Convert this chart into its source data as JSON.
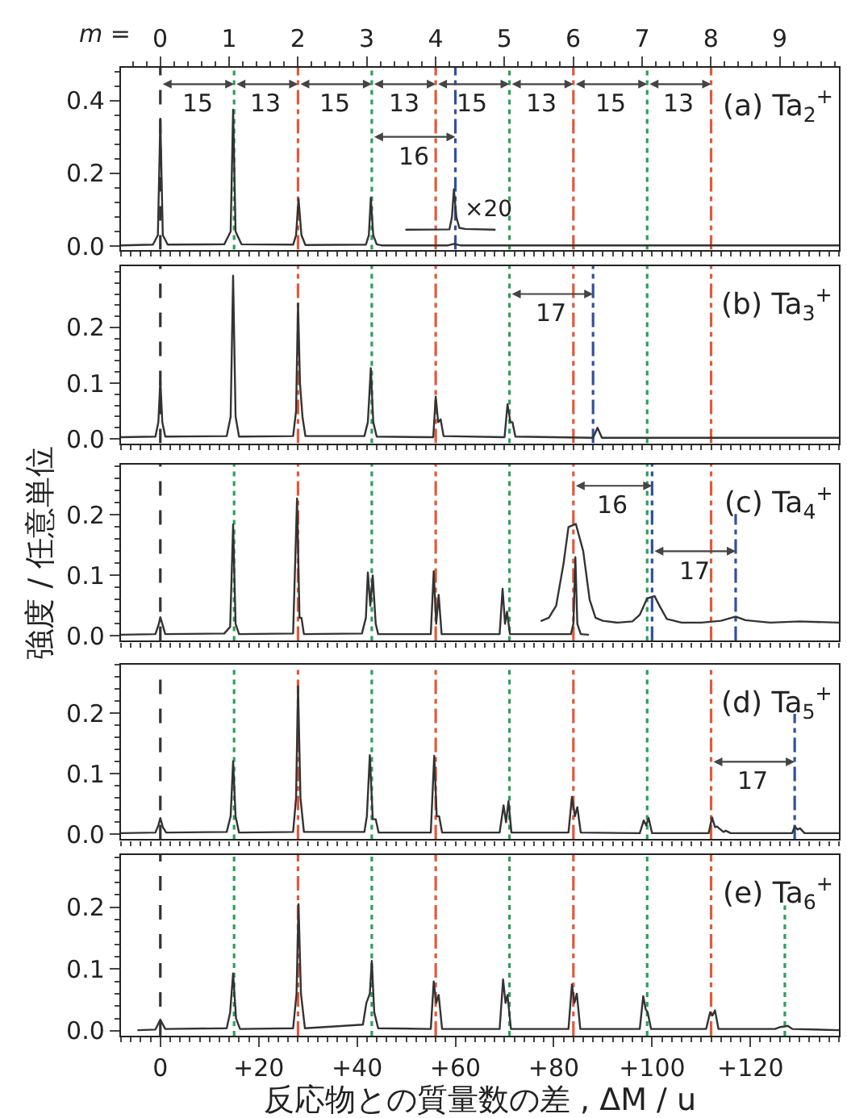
{
  "chart_data": [
    {
      "type": "line",
      "title": "(a) Ta$_{2}$$^{+}$",
      "xlim": [
        -8,
        138
      ],
      "ylim": [
        -0.01,
        0.49
      ],
      "xticks": [
        {
          "value": 0,
          "label": null
        },
        {
          "value": 20,
          "label": null
        },
        {
          "value": 40,
          "label": null
        },
        {
          "value": 60,
          "label": null
        },
        {
          "value": 80,
          "label": null
        },
        {
          "value": 100,
          "label": null
        },
        {
          "value": 120,
          "label": null
        }
      ],
      "yticks": [
        {
          "value": 0,
          "label": "0.0"
        },
        {
          "value": 0.2,
          "label": "0.2"
        },
        {
          "value": 0.4,
          "label": "0.4"
        }
      ],
      "x2label": "m =",
      "x2lim": [
        -0.57,
        9.86
      ],
      "x2ticks": [
        0,
        1,
        2,
        3,
        4,
        5,
        6,
        7,
        8,
        9
      ],
      "tick_labels": "y",
      "marker": "none",
      "series": [
        {
          "color": "#333333",
          "x": [
            -8,
            -1.5,
            -0.5,
            0,
            0.5,
            1.5,
            13,
            14.3,
            14.8,
            15.3,
            16.5,
            27,
            27.6,
            28.1,
            28.7,
            29.5,
            41.8,
            42.4,
            42.8,
            43.3,
            44,
            45,
            58.5,
            59.7,
            61,
            138
          ],
          "values": [
            0.002,
            0.004,
            0.03,
            0.35,
            0.03,
            0.004,
            0.005,
            0.04,
            0.375,
            0.04,
            0.005,
            0.004,
            0.03,
            0.13,
            0.03,
            0.003,
            0.004,
            0.03,
            0.133,
            0.03,
            0.005,
            0.002,
            0.002,
            0.006,
            0.002,
            0.002
          ]
        },
        {
          "color": "#333333",
          "x": [
            50,
            58.8,
            59.3,
            59.7,
            60.2,
            60.8,
            62,
            68
          ],
          "values": [
            0.045,
            0.046,
            0.08,
            0.156,
            0.08,
            0.05,
            0.047,
            0.045
          ]
        }
      ],
      "ref_lines": [
        {
          "axis": "x",
          "value": 0,
          "color": "#333333",
          "line_style": "dashed"
        },
        {
          "axis": "x",
          "value": 15,
          "color": "#2ca05a",
          "line_style": "dotted"
        },
        {
          "axis": "x",
          "value": 28,
          "color": "#e05a3a",
          "line_style": "dashdot"
        },
        {
          "axis": "x",
          "value": 43,
          "color": "#2ca05a",
          "line_style": "dotted"
        },
        {
          "axis": "x",
          "value": 56,
          "color": "#e05a3a",
          "line_style": "dashdot"
        },
        {
          "axis": "x",
          "value": 60,
          "color": "#3050a0",
          "line_style": "dashdot"
        },
        {
          "axis": "x",
          "value": 71,
          "color": "#2ca05a",
          "line_style": "dotted"
        },
        {
          "axis": "x",
          "value": 84,
          "color": "#e05a3a",
          "line_style": "dashdot"
        },
        {
          "axis": "x",
          "value": 99,
          "color": "#2ca05a",
          "line_style": "dotted"
        },
        {
          "axis": "x",
          "value": 112,
          "color": "#e05a3a",
          "line_style": "dashdot"
        }
      ],
      "annotations": [
        {
          "text": "15",
          "x": 15,
          "y": 0.445
        },
        {
          "text": "13",
          "x": 28,
          "y": 0.445
        },
        {
          "text": "15",
          "x": 43,
          "y": 0.445
        },
        {
          "text": "13",
          "x": 56,
          "y": 0.445
        },
        {
          "text": "15",
          "x": 71,
          "y": 0.445
        },
        {
          "text": "13",
          "x": 84,
          "y": 0.445
        },
        {
          "text": "15",
          "x": 99,
          "y": 0.445
        },
        {
          "text": "13",
          "x": 112,
          "y": 0.445
        },
        {
          "text": "16",
          "x": 60,
          "y": 0.3
        },
        "×20"
      ]
    },
    {
      "type": "line",
      "title": "(b) Ta$_{3}$$^{+}$",
      "xlim": [
        -8,
        138
      ],
      "ylim": [
        -0.008,
        0.31
      ],
      "xticks": [
        {
          "value": 0,
          "label": null
        },
        {
          "value": 20,
          "label": null
        },
        {
          "value": 40,
          "label": null
        },
        {
          "value": 60,
          "label": null
        },
        {
          "value": 80,
          "label": null
        },
        {
          "value": 100,
          "label": null
        },
        {
          "value": 120,
          "label": null
        }
      ],
      "yticks": [
        {
          "value": 0,
          "label": "0.0"
        },
        {
          "value": 0.1,
          "label": "0.1"
        },
        {
          "value": 0.2,
          "label": "0.2"
        }
      ],
      "tick_labels": "y",
      "marker": "none",
      "series": [
        {
          "color": "#333333",
          "x": [
            -8,
            -1,
            -0.4,
            0,
            0.4,
            1,
            13.5,
            14.3,
            14.8,
            15.3,
            16,
            27,
            27.6,
            28,
            28.4,
            28.9,
            29.5,
            41.5,
            42.2,
            42.8,
            43.3,
            44,
            55.5,
            56,
            56.5,
            57,
            57.6,
            70,
            70.6,
            71.2,
            71.6,
            72.2,
            88,
            88.9,
            89.8,
            138
          ],
          "values": [
            0.003,
            0.004,
            0.03,
            0.106,
            0.03,
            0.004,
            0.005,
            0.04,
            0.293,
            0.04,
            0.004,
            0.005,
            0.05,
            0.243,
            0.1,
            0.04,
            0.005,
            0.005,
            0.03,
            0.127,
            0.03,
            0.004,
            0.003,
            0.076,
            0.03,
            0.035,
            0.005,
            0.003,
            0.062,
            0.03,
            0.03,
            0.004,
            0.002,
            0.02,
            0.002,
            0.002
          ]
        }
      ],
      "ref_lines": [
        {
          "axis": "x",
          "value": 0,
          "color": "#333333",
          "line_style": "dashed"
        },
        {
          "axis": "x",
          "value": 28,
          "color": "#e05a3a",
          "line_style": "dashdot"
        },
        {
          "axis": "x",
          "value": 43,
          "color": "#2ca05a",
          "line_style": "dotted"
        },
        {
          "axis": "x",
          "value": 56,
          "color": "#e05a3a",
          "line_style": "dashdot"
        },
        {
          "axis": "x",
          "value": 71,
          "color": "#2ca05a",
          "line_style": "dotted"
        },
        {
          "axis": "x",
          "value": 84,
          "color": "#e05a3a",
          "line_style": "dashdot"
        },
        {
          "axis": "x",
          "value": 88,
          "color": "#3050a0",
          "line_style": "dashdot"
        },
        {
          "axis": "x",
          "value": 99,
          "color": "#2ca05a",
          "line_style": "dotted"
        },
        {
          "axis": "x",
          "value": 112,
          "color": "#e05a3a",
          "line_style": "dashdot"
        }
      ],
      "annotations": [
        {
          "text": "17",
          "x": 88,
          "y": 0.26
        }
      ]
    },
    {
      "type": "line",
      "title": "(c) Ta$_{4}$$^{+}$",
      "ylabel": "強度 / 任意単位",
      "xlim": [
        -8,
        138
      ],
      "ylim": [
        -0.008,
        0.283
      ],
      "xticks": [
        {
          "value": 0,
          "label": null
        },
        {
          "value": 20,
          "label": null
        },
        {
          "value": 40,
          "label": null
        },
        {
          "value": 60,
          "label": null
        },
        {
          "value": 80,
          "label": null
        },
        {
          "value": 100,
          "label": null
        },
        {
          "value": 120,
          "label": null
        }
      ],
      "yticks": [
        {
          "value": 0,
          "label": "0.0"
        },
        {
          "value": 0.1,
          "label": "0.1"
        },
        {
          "value": 0.2,
          "label": "0.2"
        }
      ],
      "tick_labels": "y",
      "marker": "none",
      "series": [
        {
          "color": "#333333",
          "x": [
            -8,
            -1,
            -0.3,
            0,
            0.4,
            1,
            13,
            14.2,
            14.8,
            15.3,
            16,
            27,
            27.8,
            28.3,
            28.7,
            29.2,
            41,
            41.8,
            42.2,
            42.7,
            43.2,
            43.8,
            44.3,
            55,
            55.6,
            56.1,
            56.6,
            57.2,
            69,
            69.6,
            70.1,
            70.5,
            71.1,
            83.5,
            84,
            84.4,
            84.8,
            85.5,
            87
          ],
          "values": [
            0.002,
            0.003,
            0.02,
            0.031,
            0.02,
            0.003,
            0.004,
            0.015,
            0.184,
            0.02,
            0.003,
            0.004,
            0.227,
            0.03,
            0.03,
            0.003,
            0.004,
            0.03,
            0.105,
            0.05,
            0.1,
            0.02,
            0.003,
            0.003,
            0.107,
            0.02,
            0.068,
            0.003,
            0.003,
            0.078,
            0.02,
            0.04,
            0.003,
            0.003,
            0.02,
            0.13,
            0.02,
            0.003,
            0.002
          ]
        },
        {
          "color": "#333333",
          "x": [
            77.5,
            79,
            80.5,
            82,
            83,
            84.5,
            86,
            87.3,
            88.5,
            90,
            93,
            96,
            97.5,
            99,
            100.5,
            101.5,
            103,
            106,
            110,
            114,
            117,
            119,
            124,
            130,
            138
          ],
          "values": [
            0.025,
            0.03,
            0.05,
            0.12,
            0.18,
            0.185,
            0.14,
            0.06,
            0.03,
            0.025,
            0.022,
            0.024,
            0.035,
            0.062,
            0.066,
            0.05,
            0.028,
            0.022,
            0.022,
            0.025,
            0.032,
            0.026,
            0.022,
            0.024,
            0.022
          ]
        }
      ],
      "ref_lines": [
        {
          "axis": "x",
          "value": 0,
          "color": "#333333",
          "line_style": "dashed"
        },
        {
          "axis": "x",
          "value": 15,
          "color": "#2ca05a",
          "line_style": "dotted"
        },
        {
          "axis": "x",
          "value": 28,
          "color": "#e05a3a",
          "line_style": "dashdot"
        },
        {
          "axis": "x",
          "value": 43,
          "color": "#2ca05a",
          "line_style": "dotted"
        },
        {
          "axis": "x",
          "value": 56,
          "color": "#e05a3a",
          "line_style": "dashdot"
        },
        {
          "axis": "x",
          "value": 71,
          "color": "#2ca05a",
          "line_style": "dotted"
        },
        {
          "axis": "x",
          "value": 84,
          "color": "#e05a3a",
          "line_style": "dashdot"
        },
        {
          "axis": "x",
          "value": 99,
          "color": "#2ca05a",
          "line_style": "dotted"
        },
        {
          "axis": "x",
          "value": 100,
          "color": "#3050a0",
          "line_style": "dashdot"
        },
        {
          "axis": "x",
          "value": 112,
          "color": "#e05a3a",
          "line_style": "dashdot"
        },
        {
          "axis": "x",
          "value": 117,
          "color": "#3050a0",
          "line_style": "dashdot"
        }
      ],
      "annotations": [
        {
          "text": "16",
          "x": 100,
          "y": 0.248
        },
        {
          "text": "17",
          "x": 117,
          "y": 0.14
        }
      ]
    },
    {
      "type": "line",
      "title": "(d) Ta$_{5}$$^{+}$",
      "xlim": [
        -8,
        138
      ],
      "ylim": [
        -0.008,
        0.28
      ],
      "xticks": [
        {
          "value": 0,
          "label": null
        },
        {
          "value": 20,
          "label": null
        },
        {
          "value": 40,
          "label": null
        },
        {
          "value": 60,
          "label": null
        },
        {
          "value": 80,
          "label": null
        },
        {
          "value": 100,
          "label": null
        },
        {
          "value": 120,
          "label": null
        }
      ],
      "yticks": [
        {
          "value": 0,
          "label": "0.0"
        },
        {
          "value": 0.1,
          "label": "0.1"
        },
        {
          "value": 0.2,
          "label": "0.2"
        }
      ],
      "tick_labels": "y",
      "marker": "none",
      "series": [
        {
          "color": "#333333",
          "x": [
            -8,
            -1,
            -0.4,
            0,
            0.5,
            1.2,
            13.5,
            14.3,
            14.8,
            15.3,
            16,
            27,
            27.6,
            28,
            28.5,
            29.2,
            41.5,
            42,
            42.6,
            43.2,
            43.8,
            44.4,
            55,
            55.7,
            56.2,
            56.7,
            57.3,
            69,
            69.8,
            70.3,
            70.8,
            71.4,
            83,
            83.7,
            84.3,
            84.8,
            85.5,
            97.5,
            98.3,
            98.8,
            99.3,
            100,
            111.5,
            112.2,
            112.8,
            113.2,
            114.5,
            115,
            116,
            128.5,
            129,
            129.6,
            130.1,
            131,
            138
          ],
          "values": [
            0.002,
            0.003,
            0.015,
            0.027,
            0.012,
            0.003,
            0.004,
            0.03,
            0.121,
            0.03,
            0.003,
            0.004,
            0.06,
            0.245,
            0.06,
            0.004,
            0.004,
            0.03,
            0.131,
            0.025,
            0.025,
            0.003,
            0.003,
            0.13,
            0.03,
            0.03,
            0.003,
            0.003,
            0.048,
            0.02,
            0.055,
            0.003,
            0.003,
            0.062,
            0.03,
            0.045,
            0.003,
            0.002,
            0.023,
            0.015,
            0.027,
            0.002,
            0.002,
            0.028,
            0.012,
            0.013,
            0.004,
            0.006,
            0.002,
            0.002,
            0.013,
            0.008,
            0.01,
            0.002,
            0.002
          ]
        }
      ],
      "ref_lines": [
        {
          "axis": "x",
          "value": 0,
          "color": "#333333",
          "line_style": "dashed"
        },
        {
          "axis": "x",
          "value": 15,
          "color": "#2ca05a",
          "line_style": "dotted"
        },
        {
          "axis": "x",
          "value": 28,
          "color": "#e05a3a",
          "line_style": "dashdot"
        },
        {
          "axis": "x",
          "value": 43,
          "color": "#2ca05a",
          "line_style": "dotted"
        },
        {
          "axis": "x",
          "value": 56,
          "color": "#e05a3a",
          "line_style": "dashdot"
        },
        {
          "axis": "x",
          "value": 71,
          "color": "#2ca05a",
          "line_style": "dotted"
        },
        {
          "axis": "x",
          "value": 84,
          "color": "#e05a3a",
          "line_style": "dashdot"
        },
        {
          "axis": "x",
          "value": 99,
          "color": "#2ca05a",
          "line_style": "dotted"
        },
        {
          "axis": "x",
          "value": 112,
          "color": "#e05a3a",
          "line_style": "dashdot"
        },
        {
          "axis": "x",
          "value": 129,
          "color": "#3050a0",
          "line_style": "dashdot"
        }
      ],
      "annotations": [
        {
          "text": "17",
          "x": 129,
          "y": 0.12
        }
      ]
    },
    {
      "type": "line",
      "title": "(e) Ta$_{6}$$^{+}$",
      "xlabel": "反応物との質量数の差 , ΔM / u",
      "xlim": [
        -8,
        138
      ],
      "ylim": [
        -0.008,
        0.285
      ],
      "xticks": [
        {
          "value": 0,
          "label": "0"
        },
        {
          "value": 20,
          "label": "+20"
        },
        {
          "value": 40,
          "label": "+40"
        },
        {
          "value": 60,
          "label": "+60"
        },
        {
          "value": 80,
          "label": "+80"
        },
        {
          "value": 100,
          "label": "+100"
        },
        {
          "value": 120,
          "label": "+120"
        }
      ],
      "yticks": [
        {
          "value": 0,
          "label": "0.0"
        },
        {
          "value": 0.1,
          "label": "0.1"
        },
        {
          "value": 0.2,
          "label": "0.2"
        }
      ],
      "marker": "none",
      "series": [
        {
          "color": "#333333",
          "x": [
            -4.5,
            -1,
            0,
            1,
            13.5,
            14.2,
            14.8,
            15.4,
            16.2,
            27,
            27.7,
            28.1,
            28.6,
            29.4,
            41.2,
            41.9,
            42.6,
            43,
            43.5,
            44.3,
            55,
            55.6,
            56.1,
            56.6,
            57.3,
            69,
            69.7,
            70.2,
            70.6,
            71.3,
            83,
            83.7,
            84.2,
            84.7,
            85.4,
            97.5,
            98.2,
            98.7,
            99.1,
            99.8,
            111,
            111.8,
            112.3,
            112.8,
            113.5,
            125,
            126,
            127,
            127.6,
            128.5,
            138
          ],
          "values": [
            0.001,
            0.002,
            0.018,
            0.003,
            0.004,
            0.03,
            0.093,
            0.02,
            0.003,
            0.004,
            0.06,
            0.205,
            0.06,
            0.004,
            0.01,
            0.045,
            0.06,
            0.113,
            0.03,
            0.004,
            0.003,
            0.08,
            0.045,
            0.058,
            0.003,
            0.003,
            0.083,
            0.045,
            0.058,
            0.003,
            0.003,
            0.075,
            0.045,
            0.06,
            0.003,
            0.003,
            0.056,
            0.035,
            0.03,
            0.003,
            0.003,
            0.03,
            0.025,
            0.033,
            0.003,
            0.003,
            0.006,
            0.007,
            0.008,
            0.003,
            0.001
          ]
        }
      ],
      "ref_lines": [
        {
          "axis": "x",
          "value": 0,
          "color": "#333333",
          "line_style": "dashed"
        },
        {
          "axis": "x",
          "value": 15,
          "color": "#2ca05a",
          "line_style": "dotted"
        },
        {
          "axis": "x",
          "value": 28,
          "color": "#e05a3a",
          "line_style": "dashdot"
        },
        {
          "axis": "x",
          "value": 43,
          "color": "#2ca05a",
          "line_style": "dotted"
        },
        {
          "axis": "x",
          "value": 56,
          "color": "#e05a3a",
          "line_style": "dashdot"
        },
        {
          "axis": "x",
          "value": 71,
          "color": "#2ca05a",
          "line_style": "dotted"
        },
        {
          "axis": "x",
          "value": 84,
          "color": "#e05a3a",
          "line_style": "dashdot"
        },
        {
          "axis": "x",
          "value": 99,
          "color": "#2ca05a",
          "line_style": "dotted"
        },
        {
          "axis": "x",
          "value": 112,
          "color": "#e05a3a",
          "line_style": "dashdot"
        },
        {
          "axis": "x",
          "value": 127,
          "color": "#2ca05a",
          "line_style": "dotted"
        }
      ]
    }
  ]
}
